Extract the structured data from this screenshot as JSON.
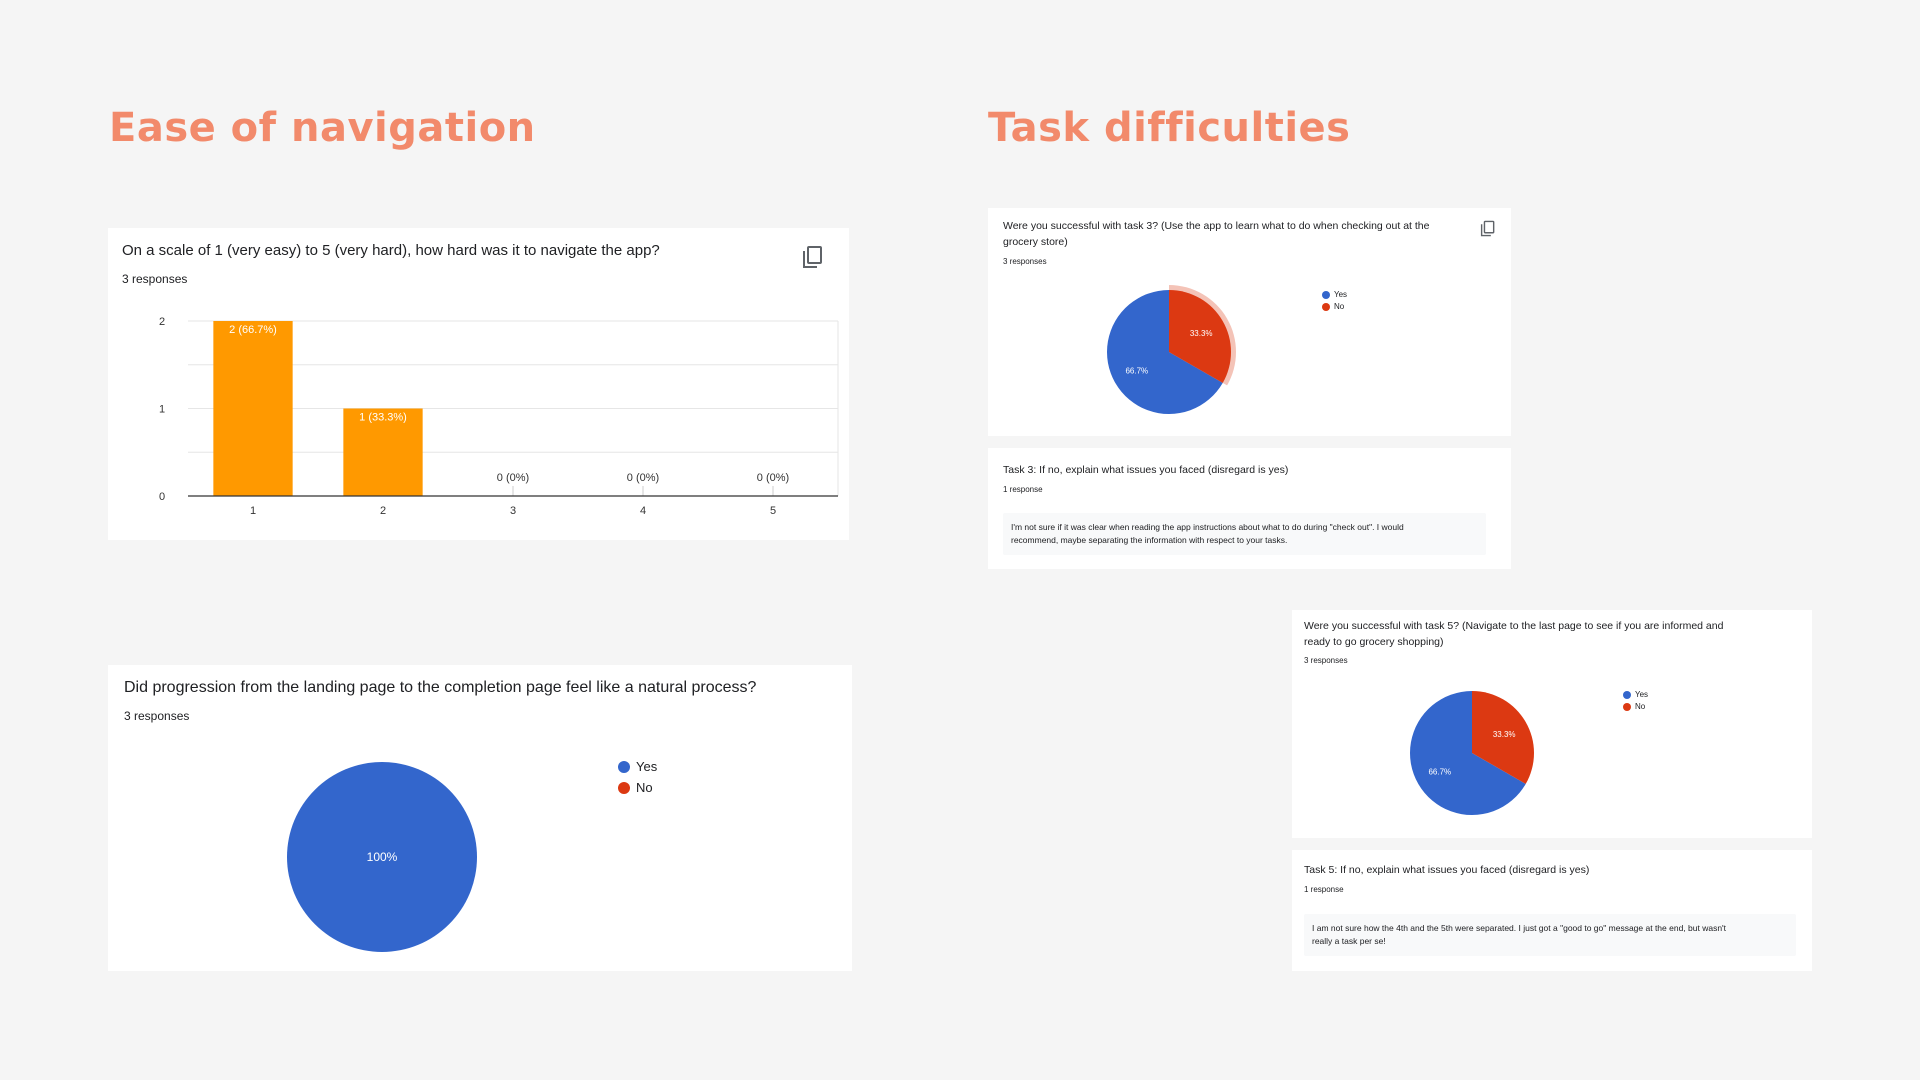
{
  "colors": {
    "heading": "#f28a6b",
    "bar": "#ff9900",
    "yes": "#3366cc",
    "no": "#dc3912",
    "axis": "#333333",
    "grid": "#e6e6e6"
  },
  "sections": {
    "navigation": {
      "title": "Ease of navigation"
    },
    "tasks": {
      "title": "Task difficulties"
    }
  },
  "cards": {
    "scale": {
      "question": "On a scale of 1 (very easy) to 5 (very hard), how hard was it to navigate the app?",
      "responses": "3 responses",
      "icon": "copy-icon"
    },
    "progression": {
      "question": "Did progression from the landing page to the completion page feel like a natural process?",
      "responses": "3 responses",
      "legend": [
        "Yes",
        "No"
      ]
    },
    "task3": {
      "question_line1": "Were you successful with task 3? (Use the app to learn what to do when checking out at the",
      "question_line2": "grocery store)",
      "responses": "3 responses",
      "icon": "copy-icon",
      "legend": [
        "Yes",
        "No"
      ]
    },
    "task3_text": {
      "question": "Task 3: If no, explain what issues you faced (disregard is yes)",
      "responses": "1 response",
      "answer_line1": "I'm not sure if it was clear when reading the app instructions about what to do during \"check out\". I would",
      "answer_line2": "recommend, maybe separating the information with respect to your tasks."
    },
    "task5": {
      "question_line1": "Were you successful with task 5? (Navigate to the last page to see if you are informed and",
      "question_line2": "ready to go grocery shopping)",
      "responses": "3 responses",
      "legend": [
        "Yes",
        "No"
      ]
    },
    "task5_text": {
      "question": "Task 5: If no, explain what issues you faced (disregard is yes)",
      "responses": "1 response",
      "answer_line1": "I am not sure how the 4th and the 5th were separated. I just got a \"good to go\" message at the end, but wasn't",
      "answer_line2": "really a task per se!"
    }
  },
  "chart_data": [
    {
      "type": "bar",
      "title": "On a scale of 1 (very easy) to 5 (very hard), how hard was it to navigate the app?",
      "categories": [
        "1",
        "2",
        "3",
        "4",
        "5"
      ],
      "values": [
        2,
        1,
        0,
        0,
        0
      ],
      "data_labels": [
        "2 (66.7%)",
        "1 (33.3%)",
        "0 (0%)",
        "0 (0%)",
        "0 (0%)"
      ],
      "yticks": [
        "0",
        "1",
        "2"
      ],
      "ylim": [
        0,
        2
      ],
      "grid": true
    },
    {
      "type": "pie",
      "title": "Did progression from the landing page to the completion page feel like a natural process?",
      "labels": [
        "Yes",
        "No"
      ],
      "values": [
        100,
        0
      ],
      "slice_labels": [
        "100%",
        ""
      ],
      "legend": "right"
    },
    {
      "type": "pie",
      "title": "Were you successful with task 3?",
      "labels": [
        "Yes",
        "No"
      ],
      "values": [
        66.7,
        33.3
      ],
      "slice_labels": [
        "66.7%",
        "33.3%"
      ],
      "highlighted": "No",
      "legend": "right"
    },
    {
      "type": "pie",
      "title": "Were you successful with task 5?",
      "labels": [
        "Yes",
        "No"
      ],
      "values": [
        66.7,
        33.3
      ],
      "slice_labels": [
        "66.7%",
        "33.3%"
      ],
      "legend": "right"
    }
  ]
}
